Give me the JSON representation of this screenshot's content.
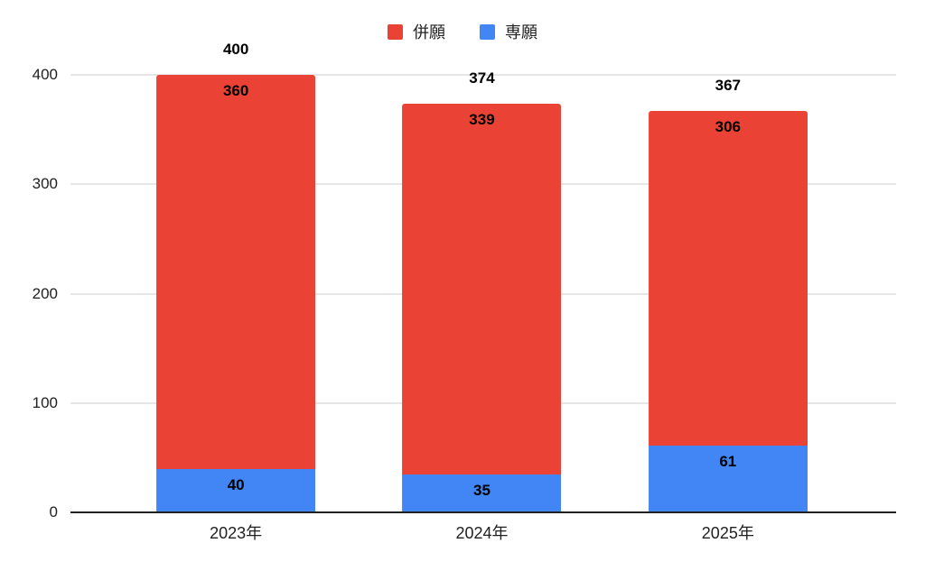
{
  "chart_data": {
    "type": "bar",
    "stacked": true,
    "title": "",
    "categories": [
      "2023年",
      "2024年",
      "2025年"
    ],
    "series": [
      {
        "name": "併願",
        "color": "#EA4335",
        "values": [
          360,
          339,
          306
        ]
      },
      {
        "name": "専願",
        "color": "#4285F4",
        "values": [
          40,
          35,
          61
        ]
      }
    ],
    "totals": [
      400,
      374,
      367
    ],
    "ylim": [
      0,
      400
    ],
    "yticks": [
      0,
      100,
      200,
      300,
      400
    ],
    "grid": true,
    "legend_position": "top",
    "background_color": "#ffffff",
    "gridline_color": "#e6e6e6",
    "baseline_color": "#212121",
    "label_color": "#000000"
  }
}
